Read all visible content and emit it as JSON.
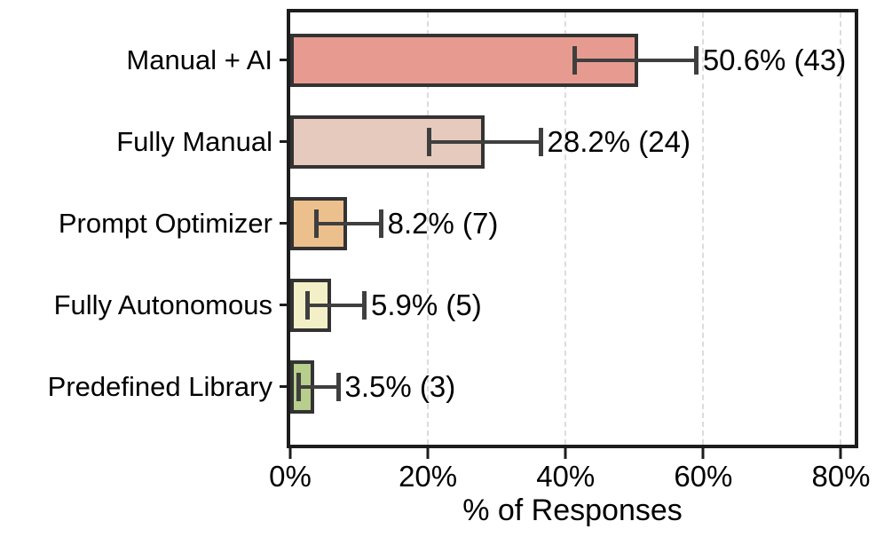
{
  "chart_data": {
    "type": "bar",
    "orientation": "horizontal",
    "xlabel": "% of Responses",
    "xlim": [
      0,
      82
    ],
    "grid": "vertical dashed lines at x ticks, behind bars",
    "categories": [
      "Manual + AI",
      "Fully Manual",
      "Prompt Optimizer",
      "Fully Autonomous",
      "Predefined Library"
    ],
    "values": [
      50.6,
      28.2,
      8.2,
      5.9,
      3.5
    ],
    "counts": [
      43,
      24,
      7,
      5,
      3
    ],
    "bar_labels": [
      "50.6% (43)",
      "28.2% (24)",
      "8.2% (7)",
      "5.9% (5)",
      "3.5% (3)"
    ],
    "error_low": [
      41.3,
      20.1,
      3.7,
      2.5,
      1.1
    ],
    "error_high": [
      58.9,
      36.3,
      13.1,
      10.7,
      6.9
    ],
    "xticks": [
      {
        "value": 0,
        "label": "0%"
      },
      {
        "value": 20,
        "label": "20%"
      },
      {
        "value": 40,
        "label": "40%"
      },
      {
        "value": 60,
        "label": "60%"
      },
      {
        "value": 80,
        "label": "80%"
      }
    ],
    "bar_colors": [
      "#E79B90",
      "#E7CABE",
      "#ECC08C",
      "#F3F0C7",
      "#B8CE8C"
    ],
    "bar_edge_color": "#333333",
    "error_color": "#3f3f3f",
    "grid_color": "#dcdcdc",
    "axis_color": "#1c1c1c",
    "text_color": "#000000"
  }
}
